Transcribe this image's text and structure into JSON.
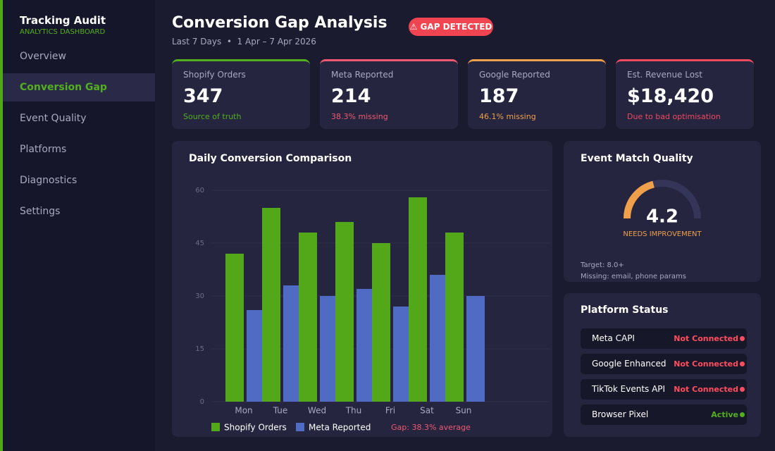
{
  "sidebar": {
    "title": "Tracking Audit",
    "subtitle": "ANALYTICS DASHBOARD",
    "nav": [
      "Overview",
      "Conversion Gap",
      "Event Quality",
      "Platforms",
      "Diagnostics",
      "Settings"
    ],
    "active": 1
  },
  "header": {
    "title": "Conversion Gap Analysis",
    "badge": "⚠ GAP DETECTED",
    "subtitle": "Last 7 Days  •  1 Apr – 7 Apr 2026"
  },
  "kpis": [
    {
      "label": "Shopify Orders",
      "value": "347",
      "note": "Source of truth",
      "color": "#52b01e"
    },
    {
      "label": "Meta Reported",
      "value": "214",
      "note": "38.3% missing",
      "color": "#ef5a70"
    },
    {
      "label": "Google Reported",
      "value": "187",
      "note": "46.1% missing",
      "color": "#f0a04b"
    },
    {
      "label": "Est. Revenue Lost",
      "value": "$18,420",
      "note": "Due to bad optimisation",
      "color": "#ef4a5e"
    }
  ],
  "chart_data": {
    "type": "bar",
    "title": "Daily Conversion Comparison",
    "categories": [
      "Mon",
      "Tue",
      "Wed",
      "Thu",
      "Fri",
      "Sat",
      "Sun"
    ],
    "series": [
      {
        "name": "Shopify Orders",
        "color": "#52a818",
        "values": [
          42,
          55,
          48,
          51,
          45,
          58,
          48
        ]
      },
      {
        "name": "Meta Reported",
        "color": "#4f6bc4",
        "values": [
          26,
          33,
          30,
          32,
          27,
          36,
          30
        ]
      }
    ],
    "ylim": [
      0,
      60
    ],
    "yticks": [
      0,
      15,
      30,
      45,
      60
    ],
    "grid": true,
    "annotation": "Gap: 38.3% average"
  },
  "gauge": {
    "title": "Event Match Quality",
    "value": 4.2,
    "range": [
      0,
      10
    ],
    "label": "NEEDS IMPROVEMENT",
    "color": "#f0a04b",
    "notes": [
      "Target: 8.0+",
      "Missing: email, phone params"
    ]
  },
  "platform_status": {
    "title": "Platform Status",
    "items": [
      {
        "name": "Meta CAPI",
        "status": "Not Connected",
        "color": "#ff4d5e"
      },
      {
        "name": "Google Enhanced",
        "status": "Not Connected",
        "color": "#ff4d5e"
      },
      {
        "name": "TikTok Events API",
        "status": "Not Connected",
        "color": "#ff4d5e"
      },
      {
        "name": "Browser Pixel",
        "status": "Active",
        "color": "#52b01e"
      }
    ]
  }
}
